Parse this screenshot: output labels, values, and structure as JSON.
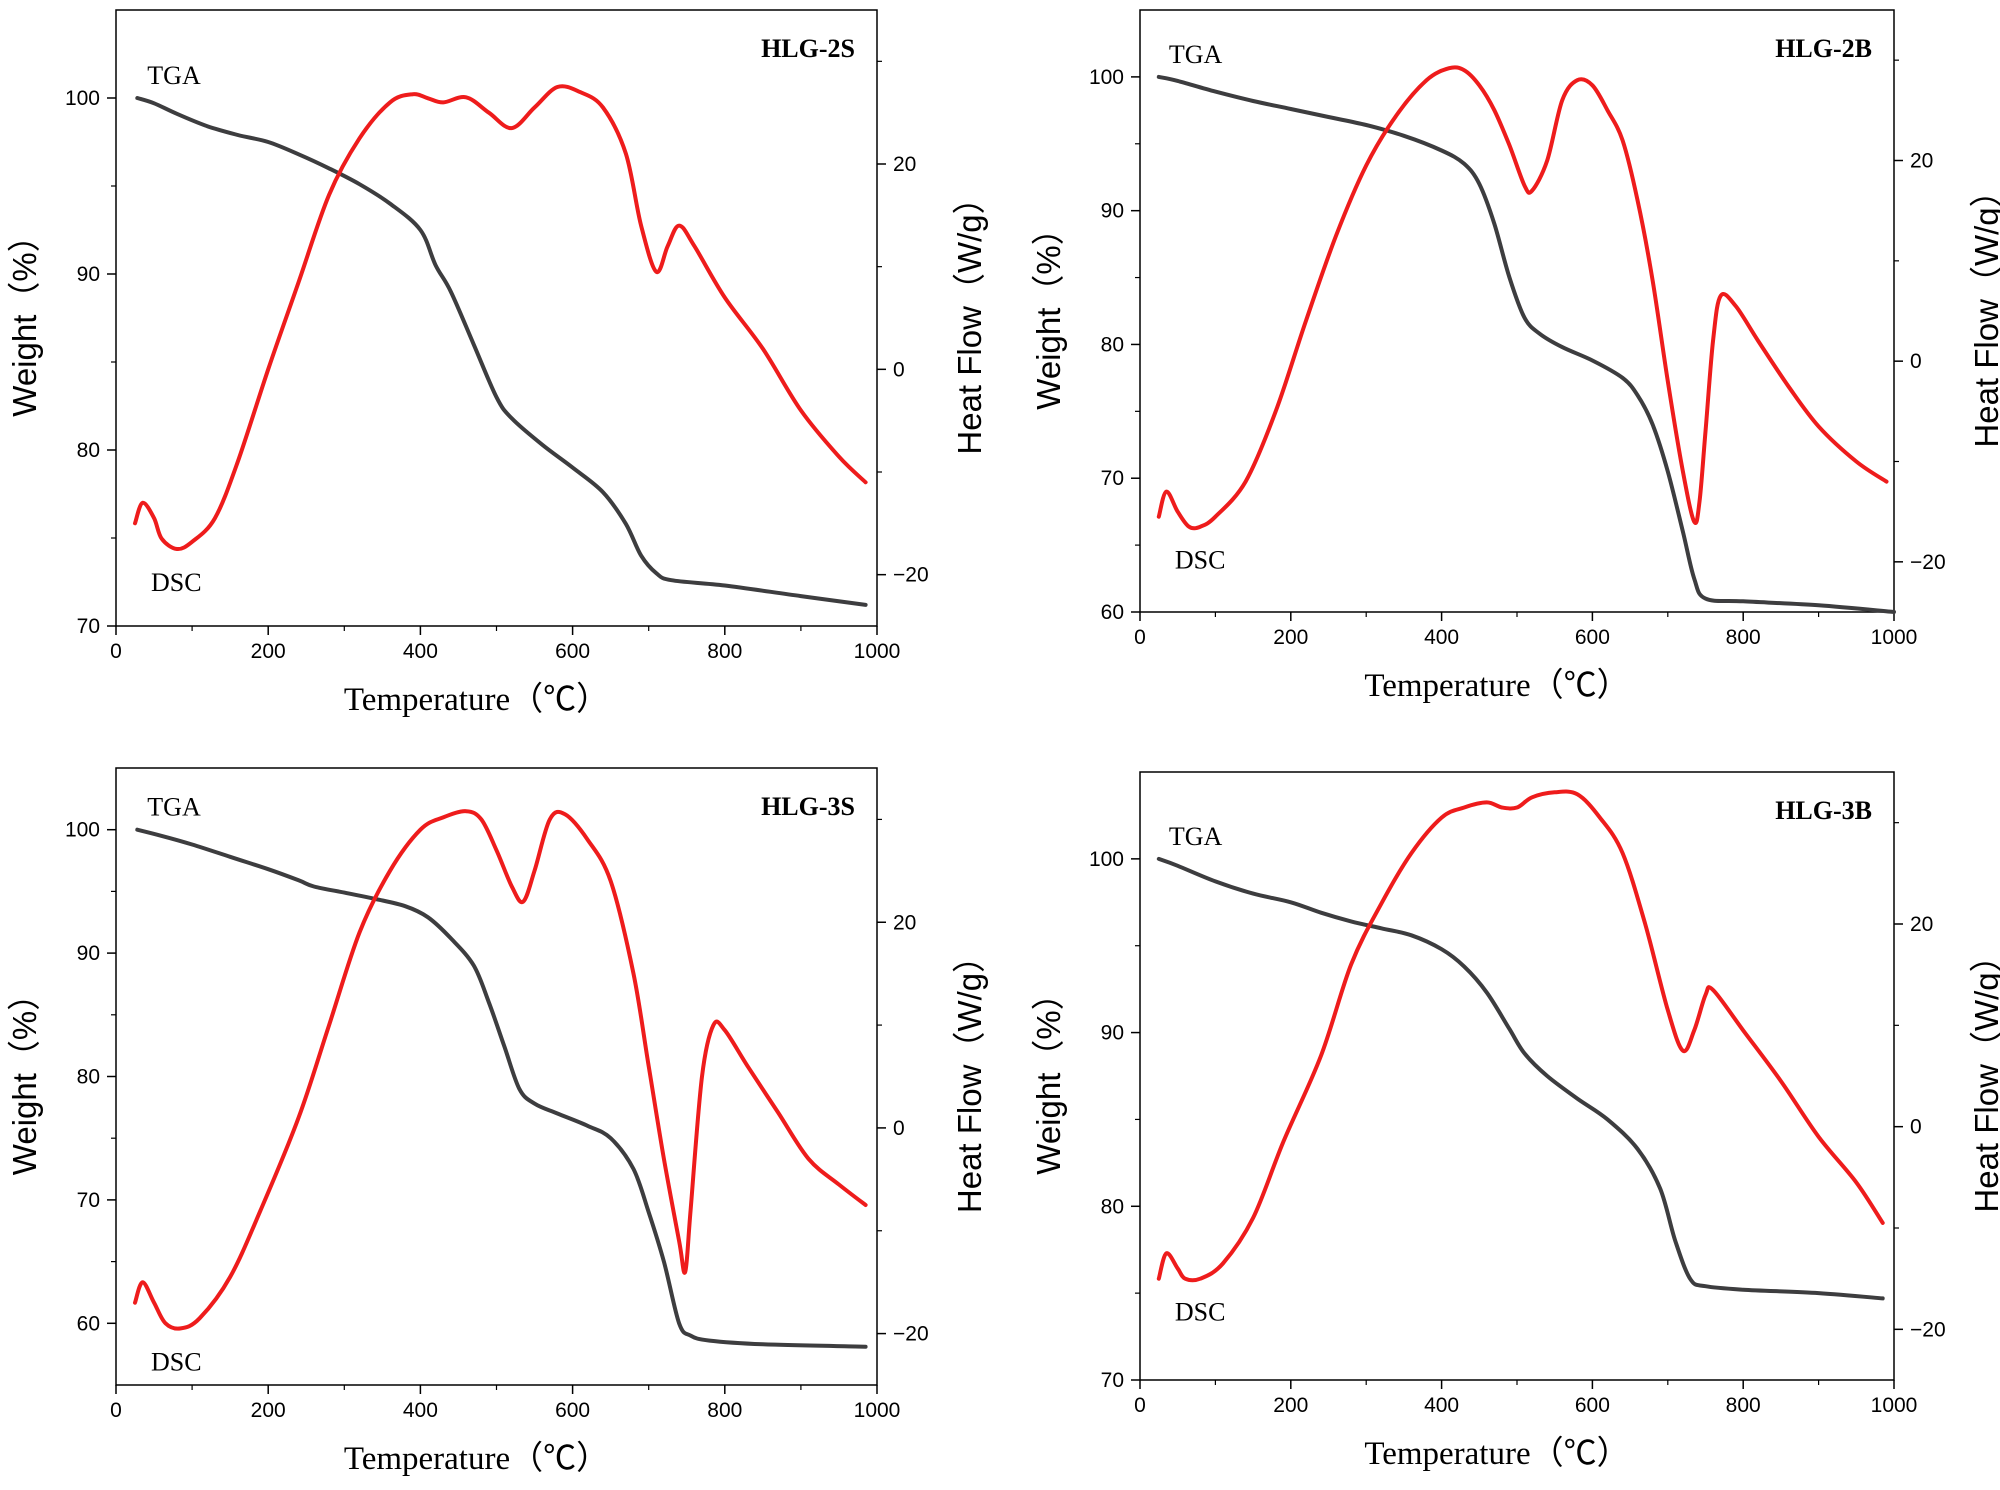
{
  "chart_data": [
    {
      "type": "line",
      "title": "HLG-2S",
      "xlabel": "Temperature（℃）",
      "ylabel_left": "Weight（%）",
      "ylabel_right": "Heat Flow（W/g）",
      "xlim": [
        0,
        1000
      ],
      "ylim_left": [
        70,
        105
      ],
      "ylim_right": [
        -25,
        35
      ],
      "xticks": [
        0,
        200,
        400,
        600,
        800,
        1000
      ],
      "yticks_left": [
        70,
        80,
        90,
        100
      ],
      "yticks_right": [
        -20,
        0,
        20
      ],
      "series": [
        {
          "name": "TGA",
          "axis": "left",
          "color": "#3d3d3f",
          "x": [
            28,
            50,
            80,
            120,
            160,
            200,
            240,
            280,
            320,
            360,
            400,
            420,
            440,
            470,
            500,
            520,
            560,
            600,
            640,
            670,
            690,
            710,
            730,
            800,
            900,
            985
          ],
          "y": [
            100,
            99.7,
            99.1,
            98.4,
            97.9,
            97.5,
            96.8,
            96.0,
            95.1,
            94.0,
            92.5,
            90.5,
            89.0,
            86.0,
            83.0,
            81.8,
            80.3,
            79.0,
            77.6,
            75.8,
            74.0,
            73.0,
            72.6,
            72.3,
            71.7,
            71.2
          ]
        },
        {
          "name": "DSC",
          "axis": "right",
          "color": "#ee1c1c",
          "x": [
            25,
            35,
            50,
            60,
            80,
            100,
            130,
            160,
            200,
            240,
            280,
            320,
            360,
            390,
            410,
            430,
            460,
            490,
            520,
            550,
            580,
            610,
            640,
            670,
            690,
            710,
            725,
            740,
            760,
            800,
            850,
            900,
            950,
            985
          ],
          "y": [
            -15,
            -13,
            -14.5,
            -16.5,
            -17.5,
            -16.8,
            -14.5,
            -9,
            0,
            8.5,
            17,
            22.5,
            26,
            26.8,
            26.4,
            26,
            26.5,
            25,
            23.5,
            25.5,
            27.5,
            27,
            25.5,
            21,
            14,
            9.5,
            12,
            14,
            12,
            7,
            2,
            -4,
            -8.5,
            -11
          ]
        }
      ],
      "annotations": [
        "TGA",
        "DSC",
        "HLG-2S"
      ]
    },
    {
      "type": "line",
      "title": "HLG-2B",
      "xlabel": "Temperature（℃）",
      "ylabel_left": "Weight（%）",
      "ylabel_right": "Heat Flow（W/g）",
      "xlim": [
        0,
        1000
      ],
      "ylim_left": [
        60,
        105
      ],
      "ylim_right": [
        -25,
        35
      ],
      "xticks": [
        0,
        200,
        400,
        600,
        800,
        1000
      ],
      "yticks_left": [
        60,
        70,
        80,
        90,
        100
      ],
      "yticks_right": [
        -20,
        0,
        20
      ],
      "series": [
        {
          "name": "TGA",
          "axis": "left",
          "color": "#3d3d3f",
          "x": [
            25,
            50,
            100,
            150,
            200,
            250,
            300,
            350,
            400,
            430,
            450,
            470,
            490,
            510,
            530,
            560,
            600,
            640,
            660,
            680,
            700,
            720,
            735,
            750,
            800,
            900,
            1000
          ],
          "y": [
            100,
            99.7,
            98.9,
            98.2,
            97.6,
            97.0,
            96.4,
            95.6,
            94.5,
            93.5,
            92.0,
            89.0,
            85.0,
            82.0,
            80.8,
            79.8,
            78.8,
            77.5,
            76.2,
            74.0,
            70.5,
            66.0,
            62.5,
            61.0,
            60.8,
            60.5,
            60.0
          ]
        },
        {
          "name": "DSC",
          "axis": "right",
          "color": "#ee1c1c",
          "x": [
            25,
            35,
            50,
            65,
            80,
            100,
            140,
            180,
            220,
            260,
            300,
            340,
            380,
            410,
            430,
            450,
            470,
            490,
            510,
            520,
            540,
            560,
            580,
            600,
            620,
            640,
            660,
            680,
            700,
            720,
            735,
            742,
            750,
            760,
            770,
            790,
            820,
            860,
            900,
            950,
            990
          ],
          "y": [
            -15.5,
            -13,
            -15,
            -16.5,
            -16.5,
            -15.5,
            -12,
            -5,
            4,
            12.5,
            19.5,
            24.5,
            28,
            29.2,
            29,
            27.5,
            25,
            21.5,
            17.5,
            17,
            20,
            26,
            28,
            27.5,
            25,
            22,
            16,
            8,
            -2,
            -11,
            -16,
            -14,
            -7,
            2,
            6.5,
            5.5,
            2,
            -2.5,
            -6.5,
            -10,
            -12
          ]
        }
      ],
      "annotations": [
        "TGA",
        "DSC",
        "HLG-2B"
      ]
    },
    {
      "type": "line",
      "title": "HLG-3S",
      "xlabel": "Temperature（℃）",
      "ylabel_left": "Weight（%）",
      "ylabel_right": "Heat Flow（W/g）",
      "xlim": [
        0,
        1000
      ],
      "ylim_left": [
        55,
        105
      ],
      "ylim_right": [
        -25,
        35
      ],
      "xticks": [
        0,
        200,
        400,
        600,
        800,
        1000
      ],
      "yticks_left": [
        60,
        70,
        80,
        90,
        100
      ],
      "yticks_right": [
        -20,
        0,
        20
      ],
      "series": [
        {
          "name": "TGA",
          "axis": "left",
          "color": "#3d3d3f",
          "x": [
            28,
            60,
            100,
            150,
            200,
            240,
            260,
            300,
            340,
            380,
            410,
            440,
            470,
            490,
            510,
            530,
            550,
            580,
            620,
            650,
            680,
            700,
            720,
            740,
            755,
            780,
            850,
            985
          ],
          "y": [
            100,
            99.5,
            98.8,
            97.8,
            96.8,
            95.9,
            95.4,
            94.9,
            94.4,
            93.8,
            92.9,
            91.2,
            89.0,
            86.0,
            82.5,
            79.0,
            77.8,
            77.0,
            76.0,
            75.0,
            72.5,
            69.0,
            65.0,
            60.0,
            59.0,
            58.6,
            58.3,
            58.1
          ]
        },
        {
          "name": "DSC",
          "axis": "right",
          "color": "#ee1c1c",
          "x": [
            25,
            35,
            50,
            65,
            85,
            110,
            150,
            190,
            240,
            280,
            320,
            360,
            400,
            430,
            460,
            480,
            500,
            520,
            535,
            550,
            570,
            590,
            620,
            650,
            680,
            700,
            720,
            740,
            748,
            755,
            770,
            785,
            800,
            830,
            870,
            910,
            950,
            985
          ],
          "y": [
            -17,
            -15,
            -17,
            -19,
            -19.5,
            -18.5,
            -14.5,
            -8,
            1,
            10,
            19,
            25,
            29,
            30.2,
            30.8,
            30,
            27,
            23.5,
            22,
            25,
            30,
            30.5,
            28,
            24,
            15,
            6,
            -3,
            -11,
            -14,
            -8,
            5,
            10,
            9.5,
            6,
            1.5,
            -3,
            -5.5,
            -7.5
          ]
        }
      ],
      "annotations": [
        "TGA",
        "DSC",
        "HLG-3S"
      ]
    },
    {
      "type": "line",
      "title": "HLG-3B",
      "xlabel": "Temperature（℃）",
      "ylabel_left": "Weight（%）",
      "ylabel_right": "Heat Flow（W/g）",
      "xlim": [
        0,
        1000
      ],
      "ylim_left": [
        70,
        105
      ],
      "ylim_right": [
        -25,
        35
      ],
      "xticks": [
        0,
        200,
        400,
        600,
        800,
        1000
      ],
      "yticks_left": [
        70,
        80,
        90,
        100
      ],
      "yticks_right": [
        -20,
        0,
        20
      ],
      "series": [
        {
          "name": "TGA",
          "axis": "left",
          "color": "#3d3d3f",
          "x": [
            25,
            50,
            100,
            150,
            200,
            240,
            280,
            320,
            360,
            400,
            430,
            460,
            490,
            510,
            540,
            580,
            620,
            660,
            690,
            710,
            730,
            750,
            800,
            900,
            985
          ],
          "y": [
            100,
            99.6,
            98.7,
            98.0,
            97.5,
            96.9,
            96.4,
            96.0,
            95.6,
            94.8,
            93.8,
            92.3,
            90.2,
            88.8,
            87.5,
            86.2,
            85.0,
            83.3,
            81.0,
            78.0,
            75.8,
            75.4,
            75.2,
            75.0,
            74.7
          ]
        },
        {
          "name": "DSC",
          "axis": "right",
          "color": "#ee1c1c",
          "x": [
            25,
            35,
            50,
            60,
            80,
            110,
            150,
            190,
            240,
            280,
            320,
            360,
            400,
            430,
            460,
            480,
            500,
            520,
            550,
            580,
            610,
            640,
            670,
            700,
            720,
            735,
            750,
            760,
            800,
            850,
            900,
            950,
            985
          ],
          "y": [
            -15,
            -12.5,
            -14,
            -15,
            -15,
            -13.5,
            -9,
            -1.5,
            7,
            16,
            22,
            27,
            30.5,
            31.5,
            32,
            31.5,
            31.5,
            32.5,
            33,
            32.8,
            30.5,
            27,
            20,
            11.5,
            7.5,
            9.5,
            13,
            13.5,
            9.5,
            4.5,
            -1,
            -5.5,
            -9.5
          ]
        }
      ],
      "annotations": [
        "TGA",
        "DSC",
        "HLG-3B"
      ]
    }
  ]
}
